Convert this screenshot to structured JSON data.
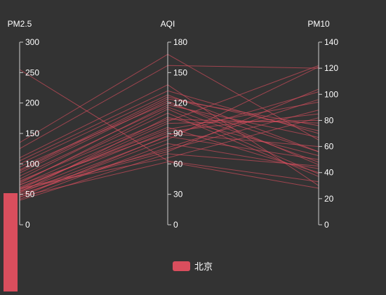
{
  "colors": {
    "background": "#333333",
    "series": "#d94e5d",
    "axis": "#cccccc",
    "text": "#ffffff"
  },
  "legend": {
    "label": "北京"
  },
  "chart_data": {
    "type": "parallel",
    "axes": [
      {
        "name": "PM2.5",
        "min": 0,
        "max": 300,
        "ticks": [
          0,
          50,
          100,
          150,
          200,
          250,
          300
        ]
      },
      {
        "name": "AQI",
        "min": 0,
        "max": 180,
        "ticks": [
          0,
          30,
          60,
          90,
          120,
          150,
          180
        ]
      },
      {
        "name": "PM10",
        "min": 0,
        "max": 140,
        "ticks": [
          0,
          20,
          40,
          60,
          80,
          100,
          120,
          140
        ]
      }
    ],
    "series": [
      {
        "name": "北京",
        "lines": [
          [
            255,
            63,
            33
          ],
          [
            135,
            168,
            65
          ],
          [
            125,
            157,
            120
          ],
          [
            88,
            124,
            76
          ],
          [
            95,
            120,
            56
          ],
          [
            80,
            116,
            48
          ],
          [
            105,
            132,
            70
          ],
          [
            70,
            110,
            37
          ],
          [
            65,
            102,
            122
          ],
          [
            60,
            96,
            40
          ],
          [
            55,
            92,
            85
          ],
          [
            45,
            88,
            102
          ],
          [
            58,
            100,
            80
          ],
          [
            62,
            94,
            94
          ],
          [
            52,
            87,
            50
          ],
          [
            48,
            84,
            121
          ],
          [
            66,
            90,
            60
          ],
          [
            72,
            104,
            78
          ],
          [
            42,
            80,
            43
          ],
          [
            50,
            76,
            96
          ],
          [
            56,
            72,
            104
          ],
          [
            40,
            70,
            45
          ],
          [
            60,
            66,
            82
          ],
          [
            46,
            62,
            28
          ],
          [
            58,
            74,
            88
          ],
          [
            100,
            128,
            56
          ],
          [
            75,
            118,
            67
          ],
          [
            85,
            122,
            46
          ],
          [
            68,
            114,
            39
          ],
          [
            110,
            138,
            30
          ],
          [
            90,
            126,
            72
          ],
          [
            53,
            106,
            53
          ]
        ]
      }
    ],
    "visual_map": {
      "min": 0,
      "max": 300,
      "selected_max": 54
    }
  }
}
